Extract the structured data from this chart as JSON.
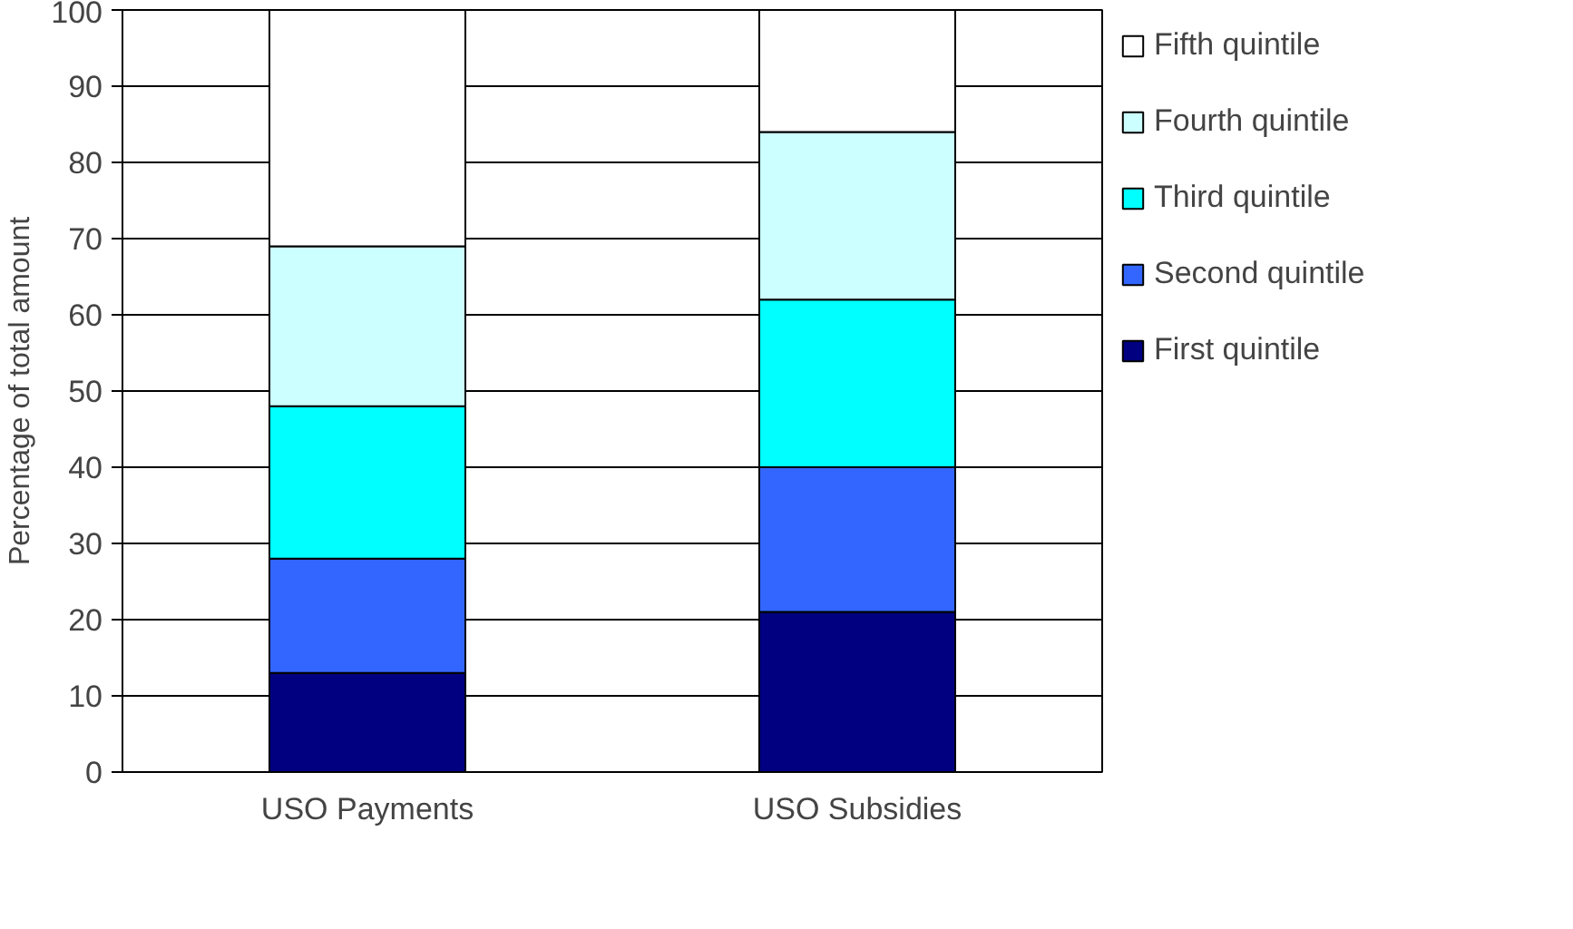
{
  "chart_data": {
    "type": "bar",
    "stacked": true,
    "ylabel": "Percentage of total amount",
    "categories": [
      "USO Payments",
      "USO Subsidies"
    ],
    "series": [
      {
        "name": "First quintile",
        "color": "#000080",
        "values": [
          13,
          21
        ]
      },
      {
        "name": "Second quintile",
        "color": "#3366ff",
        "values": [
          15,
          19
        ]
      },
      {
        "name": "Third quintile",
        "color": "#00ffff",
        "values": [
          20,
          22
        ]
      },
      {
        "name": "Fourth quintile",
        "color": "#ccffff",
        "values": [
          21,
          22
        ]
      },
      {
        "name": "Fifth quintile",
        "color": "#ffffff",
        "values": [
          31,
          16
        ]
      }
    ],
    "ylim": [
      0,
      100
    ],
    "yticks": [
      0,
      10,
      20,
      30,
      40,
      50,
      60,
      70,
      80,
      90,
      100
    ],
    "grid": "y",
    "legend": "right"
  }
}
